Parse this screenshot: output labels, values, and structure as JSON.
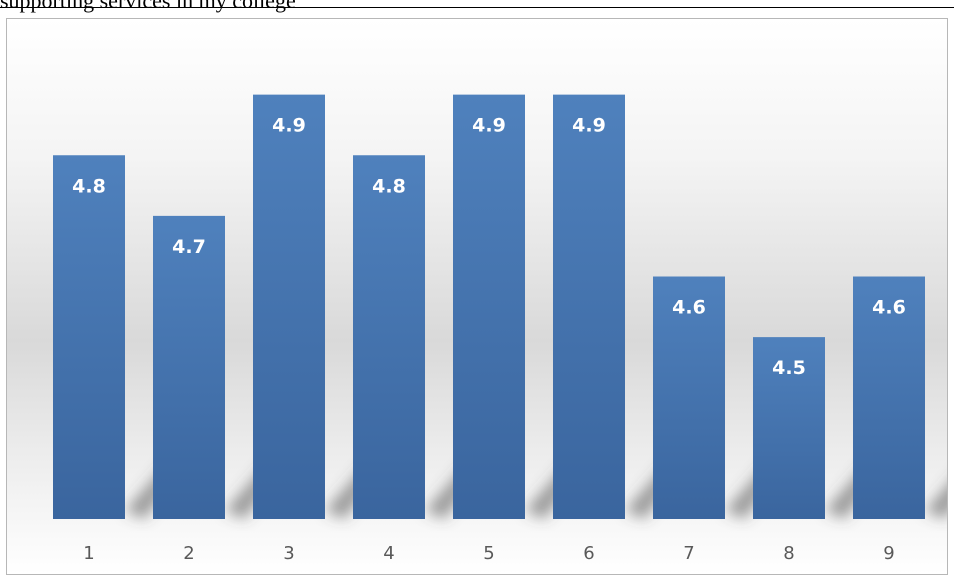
{
  "header": {
    "text": "supporting services in my college"
  },
  "colors": {
    "bar_top": "#4f81bd",
    "bar_bottom": "#3a659e",
    "label": "#ffffff",
    "tick": "#595959"
  },
  "chart_data": {
    "type": "bar",
    "title": "",
    "xlabel": "",
    "ylabel": "",
    "categories": [
      "1",
      "2",
      "3",
      "4",
      "5",
      "6",
      "7",
      "8",
      "9"
    ],
    "values": [
      4.8,
      4.7,
      4.9,
      4.8,
      4.9,
      4.9,
      4.6,
      4.5,
      4.6
    ],
    "ylim": [
      4.2,
      5.0
    ],
    "grid": false,
    "legend": "none",
    "data_labels": true
  }
}
